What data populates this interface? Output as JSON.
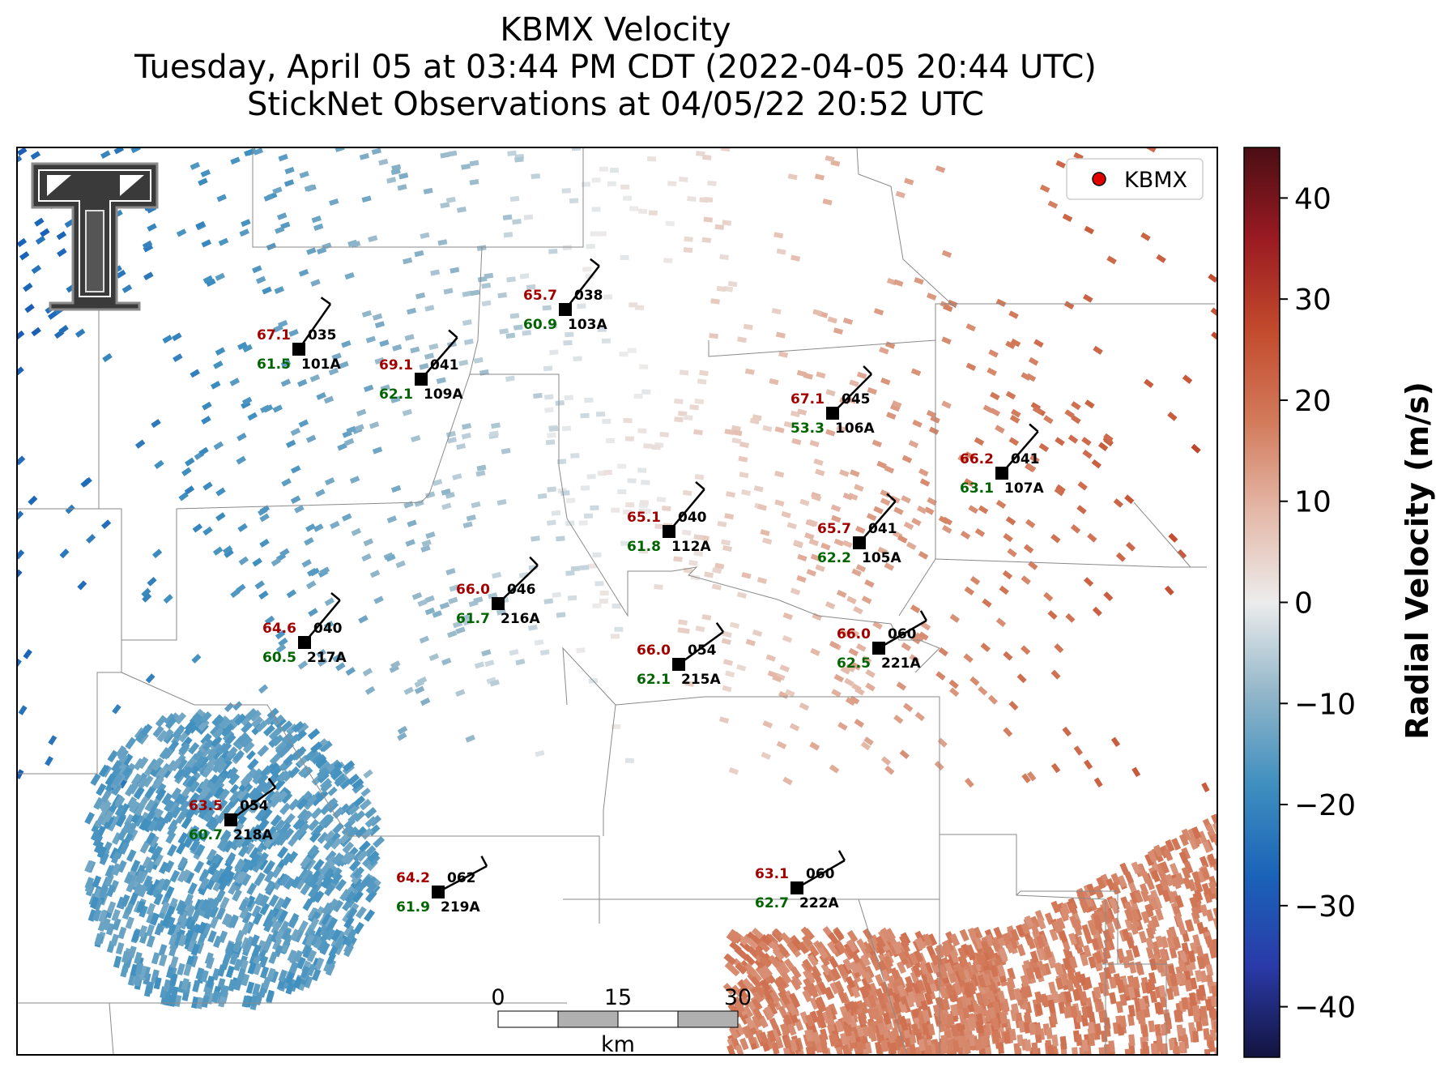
{
  "title": {
    "line1": "KBMX Velocity",
    "line2": "Tuesday, April 05 at 03:44 PM CDT (2022-04-05 20:44 UTC)",
    "line3": "StickNet Observations at 04/05/22 20:52 UTC"
  },
  "legend": {
    "label": "KBMX",
    "marker_color": "#e00000"
  },
  "colorbar": {
    "label": "Radial Velocity (m/s)",
    "ticks": [
      "40",
      "30",
      "20",
      "10",
      "0",
      "−10",
      "−20",
      "−30",
      "−40"
    ],
    "range": [
      -45,
      45
    ]
  },
  "scale_bar": {
    "unit": "km",
    "ticks": [
      "0",
      "15",
      "30"
    ]
  },
  "logo": {
    "name": "texas-tech-double-t-logo"
  },
  "stations": [
    {
      "id": "101A",
      "temp": "67.1",
      "dew": "61.5",
      "dir": "035"
    },
    {
      "id": "109A",
      "temp": "69.1",
      "dew": "62.1",
      "dir": "041"
    },
    {
      "id": "103A",
      "temp": "65.7",
      "dew": "60.9",
      "dir": "038"
    },
    {
      "id": "106A",
      "temp": "67.1",
      "dew": "53.3",
      "dir": "045"
    },
    {
      "id": "107A",
      "temp": "66.2",
      "dew": "63.1",
      "dir": "041"
    },
    {
      "id": "112A",
      "temp": "65.1",
      "dew": "61.8",
      "dir": "040"
    },
    {
      "id": "105A",
      "temp": "65.7",
      "dew": "62.2",
      "dir": "041"
    },
    {
      "id": "216A",
      "temp": "66.0",
      "dew": "61.7",
      "dir": "046"
    },
    {
      "id": "217A",
      "temp": "64.6",
      "dew": "60.5",
      "dir": "040"
    },
    {
      "id": "215A",
      "temp": "66.0",
      "dew": "62.1",
      "dir": "054"
    },
    {
      "id": "221A",
      "temp": "66.0",
      "dew": "62.5",
      "dir": "060"
    },
    {
      "id": "218A",
      "temp": "63.5",
      "dew": "60.7",
      "dir": "054"
    },
    {
      "id": "219A",
      "temp": "64.2",
      "dew": "61.9",
      "dir": "062"
    },
    {
      "id": "222A",
      "temp": "63.1",
      "dew": "62.7",
      "dir": "060"
    }
  ]
}
